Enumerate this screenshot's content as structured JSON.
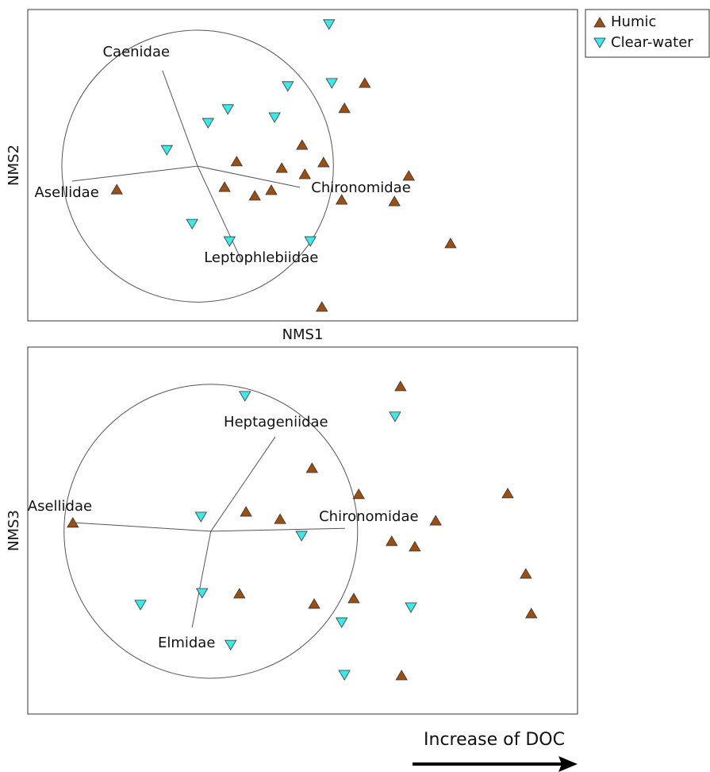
{
  "chart_data": [
    {
      "type": "scatter",
      "xlabel": "NMS1",
      "ylabel": "NMS2",
      "xlim": [
        0,
        100
      ],
      "ylim": [
        0,
        100
      ],
      "series": [
        {
          "name": "Humic",
          "color": "#9c4f12",
          "marker": "triangle-up",
          "x": [
            61.3,
            57.6,
            49.9,
            38.0,
            46.2,
            50.4,
            53.8,
            69.3,
            35.8,
            44.3,
            41.3,
            57.1,
            66.7,
            16.2,
            76.9,
            53.5
          ],
          "y": [
            76.5,
            68.4,
            56.6,
            51.3,
            49.2,
            47.2,
            51.0,
            46.7,
            43.1,
            42.1,
            40.3,
            39.0,
            38.5,
            42.3,
            25.0,
            4.6
          ]
        },
        {
          "name": "Clear-water",
          "color": "#3de8e8",
          "marker": "triangle-down",
          "x": [
            54.8,
            55.3,
            47.3,
            36.4,
            32.8,
            44.9,
            25.3,
            29.9,
            36.7,
            51.4
          ],
          "y": [
            95.2,
            76.3,
            75.3,
            67.9,
            63.5,
            65.3,
            54.8,
            31.1,
            25.5,
            25.5
          ]
        }
      ],
      "circle": {
        "x": 30.9,
        "y": 49.7,
        "r": 24.7
      },
      "origin": [
        30.9,
        49.7
      ],
      "vectors": [
        {
          "label": "Caenidae",
          "x": 24.5,
          "y": 80.4
        },
        {
          "label": "Asellidae",
          "x": 8.1,
          "y": 44.9
        },
        {
          "label": "Chironomidae",
          "x": 49.5,
          "y": 42.9
        },
        {
          "label": "Leptophlebiidae",
          "x": 39.0,
          "y": 18.9
        }
      ],
      "legend": "outside-top-right"
    },
    {
      "type": "scatter",
      "ylabel": "NMS3",
      "xlim": [
        0,
        100
      ],
      "ylim": [
        0,
        100
      ],
      "series": [
        {
          "name": "Humic",
          "color": "#9c4f12",
          "marker": "triangle-up",
          "x": [
            67.8,
            51.7,
            60.2,
            87.3,
            39.7,
            45.9,
            74.2,
            66.2,
            70.4,
            8.2,
            38.5,
            52.1,
            59.3,
            90.6,
            91.6,
            68.0
          ],
          "y": [
            89.4,
            67.1,
            60.0,
            60.2,
            55.2,
            53.2,
            52.8,
            47.2,
            45.7,
            52.2,
            32.9,
            30.1,
            31.6,
            38.3,
            27.5,
            10.6
          ]
        },
        {
          "name": "Clear-water",
          "color": "#3de8e8",
          "marker": "triangle-down",
          "x": [
            39.5,
            66.8,
            31.5,
            49.8,
            31.7,
            20.5,
            57.1,
            69.7,
            36.9,
            57.6
          ],
          "y": [
            86.6,
            81.0,
            53.7,
            48.5,
            32.9,
            29.7,
            24.9,
            29.0,
            18.8,
            10.6
          ]
        }
      ],
      "circle": {
        "x": 33.3,
        "y": 49.8,
        "r": 26.7
      },
      "origin": [
        33.3,
        49.8
      ],
      "vectors": [
        {
          "label": "Heptageniidae",
          "x": 45.0,
          "y": 75.5
        },
        {
          "label": "Asellidae",
          "x": 8.0,
          "y": 52.2
        },
        {
          "label": "Chironomidae",
          "x": 57.7,
          "y": 50.6
        },
        {
          "label": "Elmidae",
          "x": 29.9,
          "y": 23.6
        }
      ],
      "annotation": "Increase of DOC"
    }
  ]
}
